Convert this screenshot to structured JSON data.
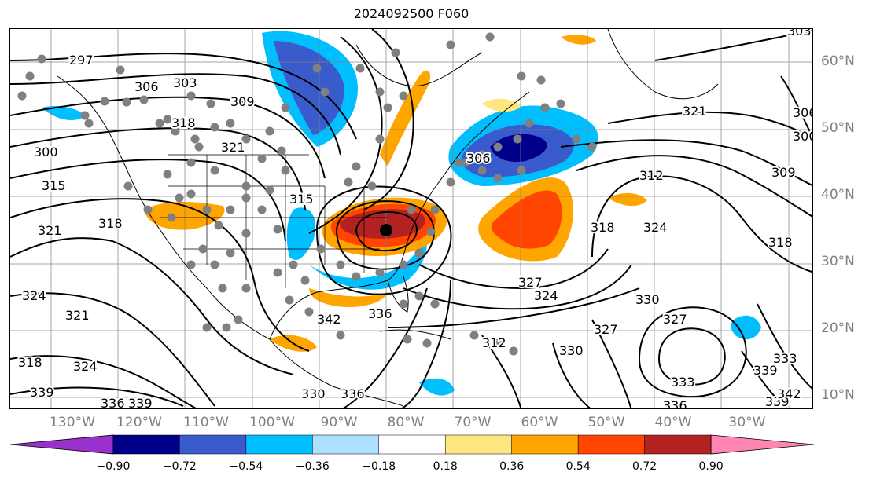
{
  "title": "2024092500 F060",
  "map": {
    "lat_labels": [
      "60°N",
      "50°N",
      "40°N",
      "30°N",
      "20°N",
      "10°N"
    ],
    "lon_labels": [
      "130°W",
      "120°W",
      "110°W",
      "100°W",
      "90°W",
      "80°W",
      "70°W",
      "60°W",
      "50°W",
      "40°W",
      "30°W"
    ],
    "contour_labels": [
      "297",
      "306",
      "303",
      "309",
      "318",
      "321",
      "300",
      "315",
      "321",
      "318",
      "324",
      "321",
      "324",
      "318",
      "339",
      "336",
      "339",
      "330",
      "336",
      "342",
      "336",
      "327",
      "324",
      "318",
      "330",
      "327",
      "324",
      "330",
      "333",
      "336",
      "339",
      "342",
      "339",
      "312",
      "309",
      "318",
      "321",
      "306",
      "303",
      "300",
      "306",
      "315",
      "312",
      "327",
      "333"
    ],
    "colors": {
      "coastline": "#000000",
      "contour": "#000000",
      "grid": "#808080",
      "station_marker": "#808080",
      "low_center_marker": "#000000"
    }
  },
  "colorbar": {
    "tick_labels": [
      "−0.90",
      "−0.72",
      "−0.54",
      "−0.36",
      "−0.18",
      "0.18",
      "0.36",
      "0.54",
      "0.72",
      "0.90"
    ],
    "colors": [
      "#9932CC",
      "#00008B",
      "#3A5BCC",
      "#00BFFF",
      "#ADDFFF",
      "#FFFFFF",
      "#FFE680",
      "#FFA500",
      "#FF4500",
      "#B22222",
      "#FF85B3"
    ],
    "extend": "both"
  }
}
